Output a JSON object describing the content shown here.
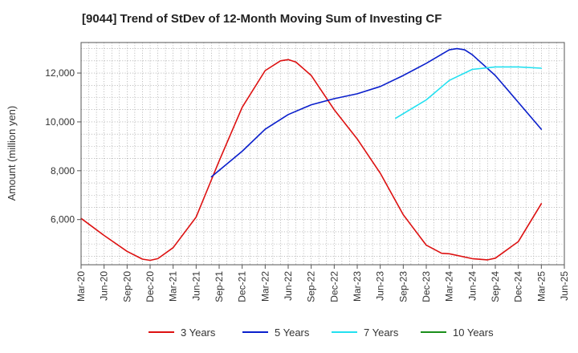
{
  "chart_data": {
    "type": "line",
    "title": "[9044]  Trend of StDev of 12-Month Moving Sum of Investing CF",
    "xlabel": "",
    "ylabel": "Amount (million yen)",
    "ylim": [
      4150,
      13250
    ],
    "yticks": [
      6000,
      8000,
      10000,
      12000
    ],
    "ytick_labels": [
      "6,000",
      "8,000",
      "10,000",
      "12,000"
    ],
    "x_range": [
      "2020-03",
      "2025-06"
    ],
    "xtick_labels": [
      "Mar-20",
      "Jun-20",
      "Sep-20",
      "Dec-20",
      "Mar-21",
      "Jun-21",
      "Sep-21",
      "Dec-21",
      "Mar-22",
      "Jun-22",
      "Sep-22",
      "Dec-22",
      "Mar-23",
      "Jun-23",
      "Sep-23",
      "Dec-23",
      "Mar-24",
      "Jun-24",
      "Sep-24",
      "Dec-24",
      "Mar-25",
      "Jun-25"
    ],
    "grid": true,
    "legend_position": "bottom",
    "series": [
      {
        "name": "3 Years",
        "color": "#dd1111",
        "points": [
          [
            "2020-03",
            6050
          ],
          [
            "2020-06",
            5350
          ],
          [
            "2020-09",
            4700
          ],
          [
            "2020-11",
            4380
          ],
          [
            "2020-12",
            4330
          ],
          [
            "2021-01",
            4400
          ],
          [
            "2021-03",
            4850
          ],
          [
            "2021-06",
            6100
          ],
          [
            "2021-09",
            8400
          ],
          [
            "2021-12",
            10600
          ],
          [
            "2022-03",
            12100
          ],
          [
            "2022-05",
            12500
          ],
          [
            "2022-06",
            12550
          ],
          [
            "2022-07",
            12450
          ],
          [
            "2022-09",
            11900
          ],
          [
            "2022-12",
            10500
          ],
          [
            "2023-03",
            9300
          ],
          [
            "2023-06",
            7900
          ],
          [
            "2023-09",
            6200
          ],
          [
            "2023-12",
            4950
          ],
          [
            "2024-02",
            4620
          ],
          [
            "2024-03",
            4600
          ],
          [
            "2024-06",
            4400
          ],
          [
            "2024-08",
            4350
          ],
          [
            "2024-09",
            4420
          ],
          [
            "2024-12",
            5100
          ],
          [
            "2025-03",
            6650
          ]
        ]
      },
      {
        "name": "5 Years",
        "color": "#0a1fcc",
        "points": [
          [
            "2021-08",
            7750
          ],
          [
            "2021-12",
            8800
          ],
          [
            "2022-03",
            9700
          ],
          [
            "2022-06",
            10300
          ],
          [
            "2022-09",
            10700
          ],
          [
            "2022-12",
            10950
          ],
          [
            "2023-03",
            11150
          ],
          [
            "2023-06",
            11450
          ],
          [
            "2023-09",
            11900
          ],
          [
            "2023-12",
            12400
          ],
          [
            "2024-03",
            12950
          ],
          [
            "2024-04",
            13000
          ],
          [
            "2024-05",
            12950
          ],
          [
            "2024-06",
            12750
          ],
          [
            "2024-09",
            11900
          ],
          [
            "2024-12",
            10800
          ],
          [
            "2025-03",
            9700
          ]
        ]
      },
      {
        "name": "7 Years",
        "color": "#22e0f0",
        "points": [
          [
            "2023-08",
            10150
          ],
          [
            "2023-12",
            10900
          ],
          [
            "2024-03",
            11700
          ],
          [
            "2024-06",
            12150
          ],
          [
            "2024-09",
            12250
          ],
          [
            "2024-12",
            12250
          ],
          [
            "2025-03",
            12200
          ]
        ]
      },
      {
        "name": "10 Years",
        "color": "#1a8f1a",
        "points": []
      }
    ]
  }
}
